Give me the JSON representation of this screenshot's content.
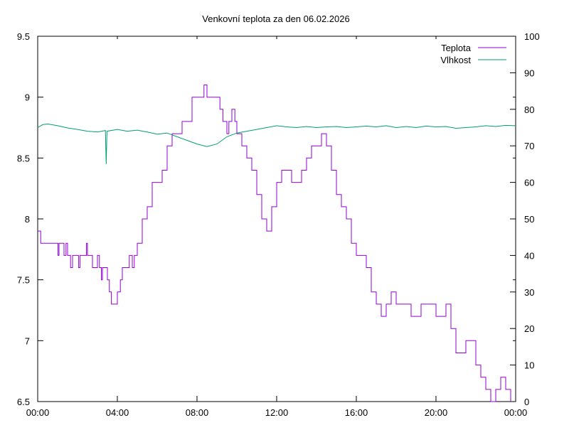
{
  "chart_data": {
    "type": "line",
    "title": "Venkovní teplota za den 06.02.2026",
    "x_ticks": [
      "00:00",
      "04:00",
      "08:00",
      "12:00",
      "16:00",
      "20:00",
      "00:00"
    ],
    "xlim_hours": [
      0,
      24
    ],
    "y_left": {
      "ticks": [
        "6.5",
        "7",
        "7.5",
        "8",
        "8.5",
        "9",
        "9.5"
      ],
      "ylim": [
        6.5,
        9.5
      ]
    },
    "y_right": {
      "ticks": [
        "0",
        "10",
        "20",
        "30",
        "40",
        "50",
        "60",
        "70",
        "80",
        "90",
        "100"
      ],
      "ylim": [
        0,
        100
      ]
    },
    "grid": false,
    "legend_position": "top-right",
    "series": [
      {
        "name": "Teplota",
        "axis": "left",
        "color": "#9400d3",
        "points": [
          [
            0.0,
            7.9
          ],
          [
            0.12,
            7.9
          ],
          [
            0.15,
            7.8
          ],
          [
            0.5,
            7.8
          ],
          [
            1.0,
            7.8
          ],
          [
            1.02,
            7.7
          ],
          [
            1.07,
            7.8
          ],
          [
            1.3,
            7.8
          ],
          [
            1.32,
            7.7
          ],
          [
            1.42,
            7.8
          ],
          [
            1.5,
            7.7
          ],
          [
            1.65,
            7.6
          ],
          [
            1.75,
            7.7
          ],
          [
            2.0,
            7.7
          ],
          [
            2.05,
            7.6
          ],
          [
            2.12,
            7.7
          ],
          [
            2.4,
            7.7
          ],
          [
            2.45,
            7.8
          ],
          [
            2.5,
            7.7
          ],
          [
            2.75,
            7.6
          ],
          [
            3.0,
            7.7
          ],
          [
            3.1,
            7.6
          ],
          [
            3.2,
            7.5
          ],
          [
            3.25,
            7.6
          ],
          [
            3.4,
            7.6
          ],
          [
            3.5,
            7.5
          ],
          [
            3.6,
            7.4
          ],
          [
            3.7,
            7.3
          ],
          [
            3.9,
            7.3
          ],
          [
            4.0,
            7.4
          ],
          [
            4.15,
            7.5
          ],
          [
            4.25,
            7.6
          ],
          [
            4.5,
            7.6
          ],
          [
            4.6,
            7.7
          ],
          [
            4.75,
            7.6
          ],
          [
            4.85,
            7.7
          ],
          [
            5.0,
            7.8
          ],
          [
            5.25,
            8.0
          ],
          [
            5.5,
            8.1
          ],
          [
            5.75,
            8.3
          ],
          [
            6.0,
            8.3
          ],
          [
            6.25,
            8.4
          ],
          [
            6.5,
            8.6
          ],
          [
            6.75,
            8.7
          ],
          [
            7.0,
            8.7
          ],
          [
            7.25,
            8.8
          ],
          [
            7.5,
            8.8
          ],
          [
            7.75,
            9.0
          ],
          [
            8.0,
            9.0
          ],
          [
            8.2,
            9.0
          ],
          [
            8.35,
            9.1
          ],
          [
            8.5,
            9.0
          ],
          [
            8.75,
            9.0
          ],
          [
            9.0,
            9.0
          ],
          [
            9.15,
            8.9
          ],
          [
            9.3,
            8.8
          ],
          [
            9.5,
            8.7
          ],
          [
            9.6,
            8.8
          ],
          [
            9.75,
            8.9
          ],
          [
            9.9,
            8.8
          ],
          [
            10.0,
            8.7
          ],
          [
            10.25,
            8.6
          ],
          [
            10.5,
            8.5
          ],
          [
            10.75,
            8.4
          ],
          [
            11.0,
            8.2
          ],
          [
            11.25,
            8.0
          ],
          [
            11.5,
            7.9
          ],
          [
            11.75,
            8.1
          ],
          [
            12.0,
            8.3
          ],
          [
            12.25,
            8.4
          ],
          [
            12.5,
            8.4
          ],
          [
            12.75,
            8.3
          ],
          [
            13.0,
            8.3
          ],
          [
            13.25,
            8.4
          ],
          [
            13.5,
            8.5
          ],
          [
            13.75,
            8.6
          ],
          [
            14.0,
            8.6
          ],
          [
            14.25,
            8.7
          ],
          [
            14.5,
            8.6
          ],
          [
            14.75,
            8.4
          ],
          [
            15.0,
            8.2
          ],
          [
            15.25,
            8.1
          ],
          [
            15.5,
            8.0
          ],
          [
            15.75,
            7.8
          ],
          [
            16.0,
            7.7
          ],
          [
            16.25,
            7.7
          ],
          [
            16.5,
            7.6
          ],
          [
            16.75,
            7.4
          ],
          [
            17.0,
            7.3
          ],
          [
            17.25,
            7.2
          ],
          [
            17.5,
            7.3
          ],
          [
            17.75,
            7.4
          ],
          [
            18.0,
            7.3
          ],
          [
            18.25,
            7.3
          ],
          [
            18.5,
            7.3
          ],
          [
            18.75,
            7.2
          ],
          [
            19.0,
            7.2
          ],
          [
            19.25,
            7.3
          ],
          [
            19.5,
            7.3
          ],
          [
            19.75,
            7.3
          ],
          [
            20.0,
            7.2
          ],
          [
            20.25,
            7.2
          ],
          [
            20.5,
            7.3
          ],
          [
            20.75,
            7.1
          ],
          [
            21.0,
            6.9
          ],
          [
            21.25,
            6.9
          ],
          [
            21.5,
            7.0
          ],
          [
            21.75,
            7.0
          ],
          [
            22.0,
            6.8
          ],
          [
            22.25,
            6.7
          ],
          [
            22.5,
            6.6
          ],
          [
            22.75,
            6.5
          ],
          [
            23.0,
            6.6
          ],
          [
            23.25,
            6.7
          ],
          [
            23.5,
            6.6
          ],
          [
            23.75,
            6.5
          ]
        ]
      },
      {
        "name": "Vlhkost",
        "axis": "right",
        "color": "#009e73",
        "points": [
          [
            0.0,
            75.0
          ],
          [
            0.25,
            75.8
          ],
          [
            0.5,
            76.0
          ],
          [
            1.0,
            75.5
          ],
          [
            1.5,
            74.9
          ],
          [
            2.0,
            74.5
          ],
          [
            2.5,
            74.0
          ],
          [
            3.0,
            73.8
          ],
          [
            3.4,
            74.2
          ],
          [
            3.44,
            65.0
          ],
          [
            3.48,
            74.0
          ],
          [
            4.0,
            74.5
          ],
          [
            4.5,
            74.0
          ],
          [
            5.0,
            74.3
          ],
          [
            5.5,
            73.8
          ],
          [
            6.0,
            73.2
          ],
          [
            6.5,
            73.5
          ],
          [
            7.0,
            72.5
          ],
          [
            7.5,
            71.5
          ],
          [
            8.0,
            70.5
          ],
          [
            8.5,
            69.8
          ],
          [
            9.0,
            70.5
          ],
          [
            9.5,
            72.5
          ],
          [
            10.0,
            73.5
          ],
          [
            10.5,
            74.0
          ],
          [
            11.0,
            74.5
          ],
          [
            11.5,
            75.0
          ],
          [
            12.0,
            75.5
          ],
          [
            12.5,
            75.2
          ],
          [
            13.0,
            75.0
          ],
          [
            13.5,
            75.3
          ],
          [
            14.0,
            75.0
          ],
          [
            14.5,
            75.2
          ],
          [
            15.0,
            75.3
          ],
          [
            15.5,
            75.0
          ],
          [
            16.0,
            75.2
          ],
          [
            16.5,
            75.4
          ],
          [
            17.0,
            75.2
          ],
          [
            17.5,
            75.5
          ],
          [
            18.0,
            75.0
          ],
          [
            18.5,
            75.3
          ],
          [
            19.0,
            75.0
          ],
          [
            19.5,
            75.4
          ],
          [
            20.0,
            75.2
          ],
          [
            20.5,
            75.3
          ],
          [
            21.0,
            74.8
          ],
          [
            21.5,
            75.0
          ],
          [
            22.0,
            75.2
          ],
          [
            22.5,
            75.5
          ],
          [
            23.0,
            75.3
          ],
          [
            23.5,
            75.6
          ],
          [
            24.0,
            75.5
          ]
        ]
      }
    ]
  }
}
